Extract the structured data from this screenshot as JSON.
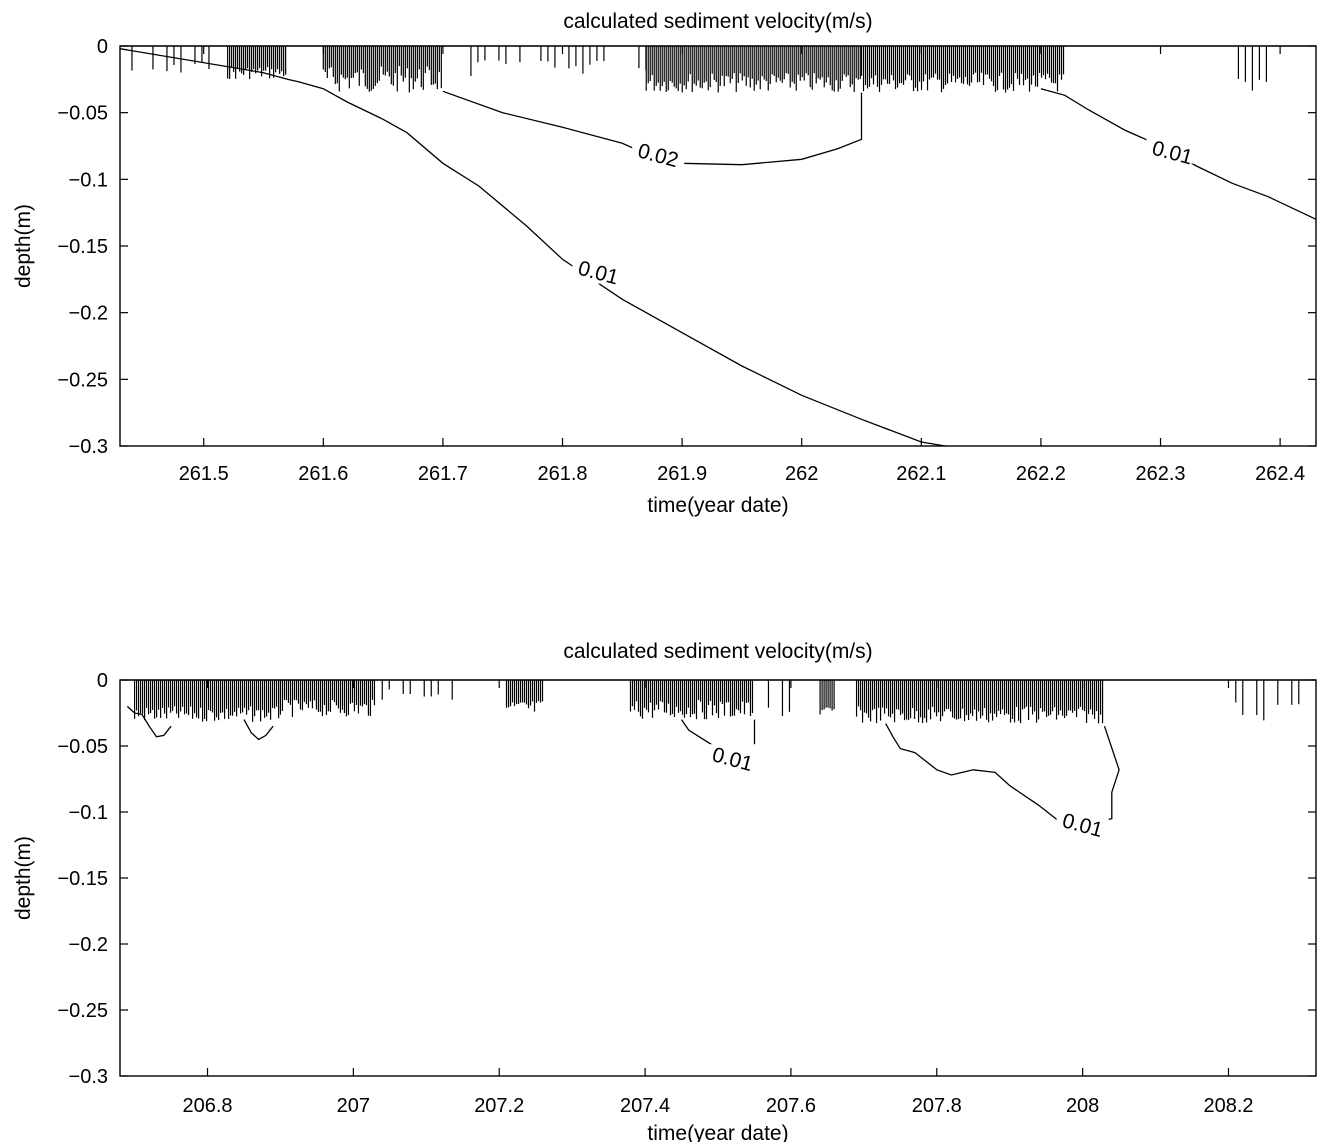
{
  "chart_data": [
    {
      "type": "contour",
      "title": "calculated sediment velocity(m/s)",
      "xlabel": "time(year date)",
      "ylabel": "depth(m)",
      "xlim": [
        261.43,
        262.43
      ],
      "ylim": [
        -0.3,
        0
      ],
      "xticks": [
        261.5,
        261.6,
        261.7,
        261.8,
        261.9,
        262,
        262.1,
        262.2,
        262.3,
        262.4
      ],
      "xtick_labels": [
        "261.5",
        "261.6",
        "261.7",
        "261.8",
        "261.9",
        "262",
        "262.1",
        "262.2",
        "262.3",
        "262.4"
      ],
      "yticks": [
        0,
        -0.05,
        -0.1,
        -0.15,
        -0.2,
        -0.25,
        -0.3
      ],
      "ytick_labels": [
        "0",
        "−0.05",
        "−0.1",
        "−0.15",
        "−0.2",
        "−0.25",
        "−0.3"
      ],
      "grid": false,
      "contours": [
        {
          "level": "0.01",
          "points": [
            [
              261.43,
              -0.002
            ],
            [
              261.55,
              -0.02
            ],
            [
              261.57,
              -0.025
            ],
            [
              261.58,
              -0.027
            ],
            [
              261.6,
              -0.032
            ],
            [
              261.62,
              -0.042
            ],
            [
              261.65,
              -0.055
            ],
            [
              261.67,
              -0.065
            ],
            [
              261.7,
              -0.088
            ],
            [
              261.73,
              -0.105
            ],
            [
              261.77,
              -0.135
            ],
            [
              261.8,
              -0.16
            ],
            [
              261.85,
              -0.19
            ],
            [
              261.9,
              -0.215
            ],
            [
              261.95,
              -0.24
            ],
            [
              262.0,
              -0.262
            ],
            [
              262.05,
              -0.28
            ],
            [
              262.1,
              -0.297
            ],
            [
              262.12,
              -0.3
            ]
          ],
          "label_at": [
            261.83,
            -0.17
          ]
        },
        {
          "level": "0.02",
          "points": [
            [
              261.7,
              -0.034
            ],
            [
              261.75,
              -0.05
            ],
            [
              261.8,
              -0.061
            ],
            [
              261.85,
              -0.073
            ],
            [
              261.88,
              -0.085
            ],
            [
              261.9,
              -0.088
            ],
            [
              261.95,
              -0.089
            ],
            [
              262.0,
              -0.085
            ],
            [
              262.03,
              -0.077
            ],
            [
              262.05,
              -0.07
            ],
            [
              262.05,
              -0.035
            ]
          ],
          "label_at": [
            261.88,
            -0.082
          ]
        },
        {
          "level": "0.01",
          "points": [
            [
              262.2,
              -0.032
            ],
            [
              262.22,
              -0.037
            ],
            [
              262.24,
              -0.048
            ],
            [
              262.27,
              -0.063
            ],
            [
              262.3,
              -0.075
            ],
            [
              262.33,
              -0.09
            ],
            [
              262.36,
              -0.103
            ],
            [
              262.39,
              -0.113
            ],
            [
              262.43,
              -0.13
            ]
          ],
          "label_at": [
            262.31,
            -0.08
          ]
        }
      ],
      "surface_spikes": [
        {
          "from": 261.44,
          "to": 261.52,
          "depth": [
            -0.01,
            -0.025
          ],
          "density": "sparse"
        },
        {
          "from": 261.52,
          "to": 261.57,
          "depth": [
            -0.015,
            -0.025
          ],
          "density": "dense"
        },
        {
          "from": 261.6,
          "to": 261.7,
          "depth": [
            -0.015,
            -0.035
          ],
          "density": "dense"
        },
        {
          "from": 261.7,
          "to": 261.87,
          "depth": [
            -0.01,
            -0.025
          ],
          "density": "sparse"
        },
        {
          "from": 261.87,
          "to": 262.05,
          "depth": [
            -0.02,
            -0.035
          ],
          "density": "dense"
        },
        {
          "from": 262.05,
          "to": 262.22,
          "depth": [
            -0.02,
            -0.035
          ],
          "density": "dense"
        },
        {
          "from": 262.33,
          "to": 262.4,
          "depth": [
            -0.02,
            -0.035
          ],
          "density": "sparse"
        }
      ]
    },
    {
      "type": "contour",
      "title": "calculated sediment velocity(m/s)",
      "xlabel": "time(year date)",
      "ylabel": "depth(m)",
      "xlim": [
        206.68,
        208.32
      ],
      "ylim": [
        -0.3,
        0
      ],
      "xticks": [
        206.8,
        207,
        207.2,
        207.4,
        207.6,
        207.8,
        208,
        208.2
      ],
      "xtick_labels": [
        "206.8",
        "207",
        "207.2",
        "207.4",
        "207.6",
        "207.8",
        "208",
        "208.2"
      ],
      "yticks": [
        0,
        -0.05,
        -0.1,
        -0.15,
        -0.2,
        -0.25,
        -0.3
      ],
      "ytick_labels": [
        "0",
        "−0.05",
        "−0.1",
        "−0.15",
        "−0.2",
        "−0.25",
        "−0.3"
      ],
      "grid": false,
      "contours": [
        {
          "level": "",
          "points": [
            [
              206.69,
              -0.02
            ],
            [
              206.7,
              -0.025
            ],
            [
              206.71,
              -0.026
            ],
            [
              206.72,
              -0.035
            ],
            [
              206.73,
              -0.043
            ],
            [
              206.74,
              -0.042
            ],
            [
              206.75,
              -0.035
            ]
          ],
          "label_at": null
        },
        {
          "level": "",
          "points": [
            [
              206.85,
              -0.03
            ],
            [
              206.86,
              -0.04
            ],
            [
              206.87,
              -0.045
            ],
            [
              206.88,
              -0.042
            ],
            [
              206.89,
              -0.035
            ]
          ],
          "label_at": null
        },
        {
          "level": "0.01",
          "points": [
            [
              207.45,
              -0.03
            ],
            [
              207.46,
              -0.038
            ],
            [
              207.48,
              -0.045
            ],
            [
              207.5,
              -0.052
            ],
            [
              207.52,
              -0.06
            ],
            [
              207.53,
              -0.063
            ],
            [
              207.55,
              -0.063
            ],
            [
              207.55,
              -0.03
            ]
          ],
          "label_at": [
            207.52,
            -0.06
          ]
        },
        {
          "level": "0.01",
          "points": [
            [
              207.73,
              -0.033
            ],
            [
              207.74,
              -0.043
            ],
            [
              207.75,
              -0.052
            ],
            [
              207.77,
              -0.055
            ],
            [
              207.8,
              -0.068
            ],
            [
              207.82,
              -0.072
            ],
            [
              207.85,
              -0.068
            ],
            [
              207.88,
              -0.07
            ],
            [
              207.9,
              -0.08
            ],
            [
              207.94,
              -0.095
            ],
            [
              207.97,
              -0.108
            ],
            [
              208.0,
              -0.11
            ],
            [
              208.04,
              -0.105
            ],
            [
              208.04,
              -0.085
            ],
            [
              208.05,
              -0.068
            ],
            [
              208.03,
              -0.035
            ]
          ],
          "label_at": [
            208.0,
            -0.11
          ]
        }
      ],
      "surface_spikes": [
        {
          "from": 206.7,
          "to": 206.9,
          "depth": [
            -0.02,
            -0.032
          ],
          "density": "dense"
        },
        {
          "from": 206.9,
          "to": 207.03,
          "depth": [
            -0.015,
            -0.028
          ],
          "density": "dense"
        },
        {
          "from": 207.03,
          "to": 207.15,
          "depth": [
            -0.005,
            -0.015
          ],
          "density": "sparse"
        },
        {
          "from": 207.21,
          "to": 207.26,
          "depth": [
            -0.015,
            -0.028
          ],
          "density": "dense"
        },
        {
          "from": 207.38,
          "to": 207.55,
          "depth": [
            -0.015,
            -0.03
          ],
          "density": "dense"
        },
        {
          "from": 207.55,
          "to": 207.6,
          "depth": [
            -0.02,
            -0.028
          ],
          "density": "sparse"
        },
        {
          "from": 207.64,
          "to": 207.66,
          "depth": [
            -0.02,
            -0.028
          ],
          "density": "dense"
        },
        {
          "from": 207.69,
          "to": 208.03,
          "depth": [
            -0.02,
            -0.033
          ],
          "density": "dense"
        },
        {
          "from": 208.21,
          "to": 208.31,
          "depth": [
            -0.015,
            -0.032
          ],
          "density": "sparse"
        }
      ]
    }
  ]
}
